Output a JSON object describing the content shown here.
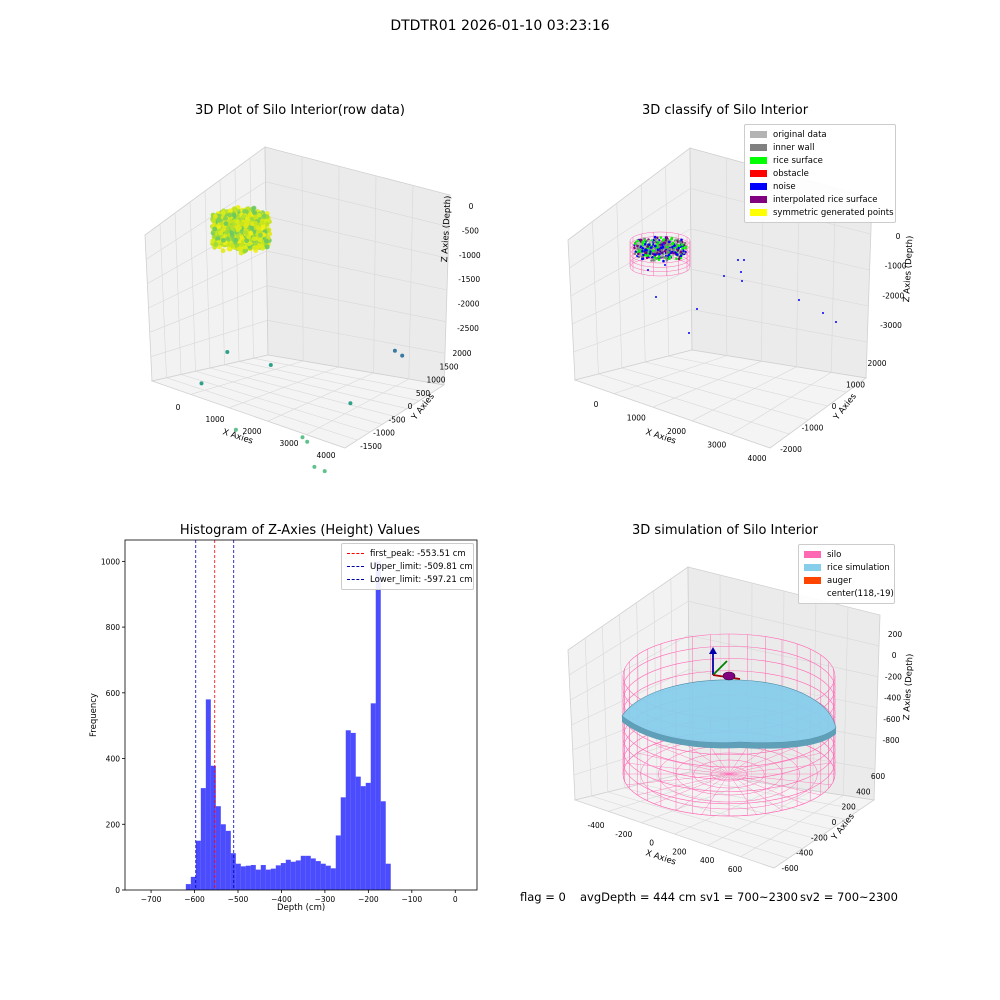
{
  "figure_title": "DTDTR01 2026-01-10 03:23:16",
  "status_line": {
    "flag": "flag = 0",
    "avg_depth": "avgDepth = 444 cm",
    "sv1": "sv1 = 700~2300",
    "sv2": "sv2 = 700~2300"
  },
  "colors": {
    "original_data": "#b3b3b3",
    "inner_wall": "#808080",
    "rice_surface": "#00ff00",
    "obstacle": "#ff0000",
    "noise": "#0000ff",
    "interpolated_rice_surface": "#800080",
    "symmetric_generated_points": "#ffff00",
    "hist_bar": "#0000ff",
    "peak_line": "#ff0000",
    "limit_line": "#0000aa",
    "silo": "#ff69b4",
    "rice_simulation": "#87ceeb",
    "auger": "#ff4500"
  },
  "chart_data": [
    {
      "type": "scatter",
      "title": "3D Plot of Silo Interior(row data)",
      "xlabel": "X Axies",
      "ylabel": "Y Axies",
      "zlabel": "Z Axies (Depth)",
      "x_ticks": [
        "0",
        "1000",
        "2000",
        "3000",
        "4000"
      ],
      "y_ticks": [
        "-1500",
        "-1000",
        "-500",
        "0",
        "500",
        "1000",
        "1500",
        "2000"
      ],
      "z_ticks": [
        "0",
        "-500",
        "-1000",
        "-1500",
        "-2000",
        "-2500"
      ],
      "cluster": {
        "x_range": [
          -100,
          700
        ],
        "y_range": [
          -500,
          500
        ],
        "z_range": [
          -600,
          0
        ]
      },
      "outliers": [
        {
          "x": 300,
          "y": -900,
          "z": -1500
        },
        {
          "x": 900,
          "y": -900,
          "z": -2000
        },
        {
          "x": 1500,
          "y": -300,
          "z": -1900
        },
        {
          "x": 2100,
          "y": 300,
          "z": -700
        },
        {
          "x": 2200,
          "y": 500,
          "z": -650
        },
        {
          "x": 2000,
          "y": 200,
          "z": -1000
        },
        {
          "x": 2100,
          "y": -100,
          "z": -1100
        },
        {
          "x": 2800,
          "y": 500,
          "z": -1600
        },
        {
          "x": 3700,
          "y": 700,
          "z": -2400
        },
        {
          "x": 3800,
          "y": 800,
          "z": -2350
        },
        {
          "x": 200,
          "y": 400,
          "z": -800
        }
      ]
    },
    {
      "type": "scatter",
      "title": "3D classify of Silo Interior",
      "xlabel": "X Axies",
      "ylabel": "Y Axies",
      "zlabel": "Z Axies (Depth)",
      "x_ticks": [
        "0",
        "1000",
        "2000",
        "3000",
        "4000"
      ],
      "y_ticks": [
        "-2000",
        "-1000",
        "0",
        "1000",
        "2000"
      ],
      "z_ticks": [
        "0",
        "-1000",
        "-2000",
        "-3000"
      ],
      "legend": [
        {
          "label": "original data",
          "color_key": "original_data"
        },
        {
          "label": "inner wall",
          "color_key": "inner_wall"
        },
        {
          "label": "rice surface",
          "color_key": "rice_surface"
        },
        {
          "label": "obstacle",
          "color_key": "obstacle"
        },
        {
          "label": "noise",
          "color_key": "noise"
        },
        {
          "label": "interpolated rice surface",
          "color_key": "interpolated_rice_surface"
        },
        {
          "label": "symmetric generated points",
          "color_key": "symmetric_generated_points"
        }
      ]
    },
    {
      "type": "bar",
      "title": "Histogram of Z-Axies (Height) Values",
      "xlabel": "Depth (cm)",
      "ylabel": "Frequency",
      "xlim": [
        -760,
        50
      ],
      "ylim": [
        0,
        1065
      ],
      "x_ticks": [
        -700,
        -600,
        -500,
        -400,
        -300,
        -200,
        -100,
        0
      ],
      "y_ticks": [
        0,
        200,
        400,
        600,
        800,
        1000
      ],
      "bin_start": -620,
      "bin_width": 11.5,
      "values": [
        18,
        40,
        150,
        310,
        580,
        378,
        255,
        200,
        180,
        112,
        80,
        72,
        74,
        76,
        62,
        76,
        62,
        65,
        75,
        82,
        92,
        86,
        90,
        104,
        104,
        96,
        88,
        80,
        74,
        66,
        166,
        282,
        486,
        478,
        345,
        316,
        326,
        568,
        1000,
        270,
        80
      ],
      "lines": [
        {
          "label": "first_peak: -553.51 cm",
          "value": -553.51,
          "color_key": "peak_line"
        },
        {
          "label": "Upper_limit: -509.81 cm",
          "value": -509.81,
          "color_key": "limit_line"
        },
        {
          "label": "Lower_limit: -597.21 cm",
          "value": -597.21,
          "color_key": "limit_line"
        }
      ]
    },
    {
      "type": "scatter",
      "title": "3D simulation of Silo Interior",
      "xlabel": "X Axies",
      "ylabel": "Y Axies",
      "zlabel": "Z Axies (Depth)",
      "x_ticks": [
        "-400",
        "-200",
        "0",
        "200",
        "400",
        "600"
      ],
      "y_ticks": [
        "-600",
        "-400",
        "-200",
        "0",
        "200",
        "400",
        "600"
      ],
      "z_ticks": [
        "200",
        "0",
        "-200",
        "-400",
        "-600",
        "-800"
      ],
      "legend": [
        {
          "label": "silo",
          "color_key": "silo"
        },
        {
          "label": "rice simulation",
          "color_key": "rice_simulation"
        },
        {
          "label": "auger",
          "color_key": "auger"
        },
        {
          "label": "center(118,-19)",
          "color_key": ""
        }
      ]
    }
  ]
}
